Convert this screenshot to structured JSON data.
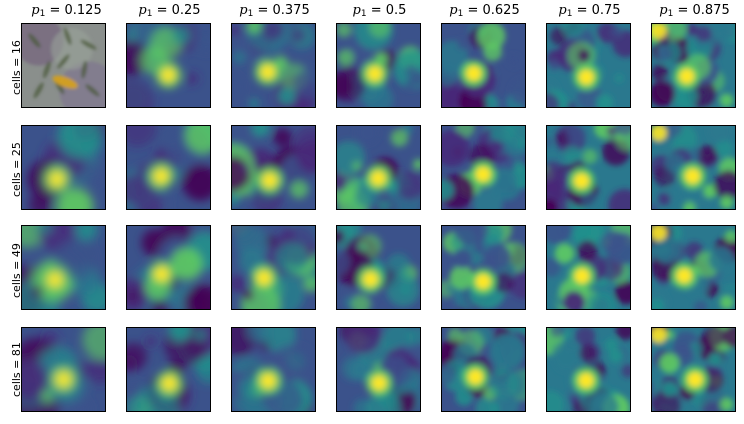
{
  "figure": {
    "columns": [
      {
        "var": "p",
        "sub": "1",
        "value": " = 0.125"
      },
      {
        "var": "p",
        "sub": "1",
        "value": " = 0.25"
      },
      {
        "var": "p",
        "sub": "1",
        "value": " = 0.375"
      },
      {
        "var": "p",
        "sub": "1",
        "value": " = 0.5"
      },
      {
        "var": "p",
        "sub": "1",
        "value": " = 0.625"
      },
      {
        "var": "p",
        "sub": "1",
        "value": " = 0.75"
      },
      {
        "var": "p",
        "sub": "1",
        "value": " = 0.875"
      }
    ],
    "rows": [
      {
        "label": "cells = 16"
      },
      {
        "label": "cells = 25"
      },
      {
        "label": "cells = 49"
      },
      {
        "label": "cells = 81"
      }
    ],
    "colormap": "viridis",
    "colors": {
      "dark": "#440154",
      "purple": "#482878",
      "blue": "#3b528b",
      "teal": "#2a788e",
      "green": "#21918c",
      "lightgreen": "#5ec962",
      "yellow": "#fde725"
    },
    "first_panel_content": "photo-with-fish-overlay"
  }
}
